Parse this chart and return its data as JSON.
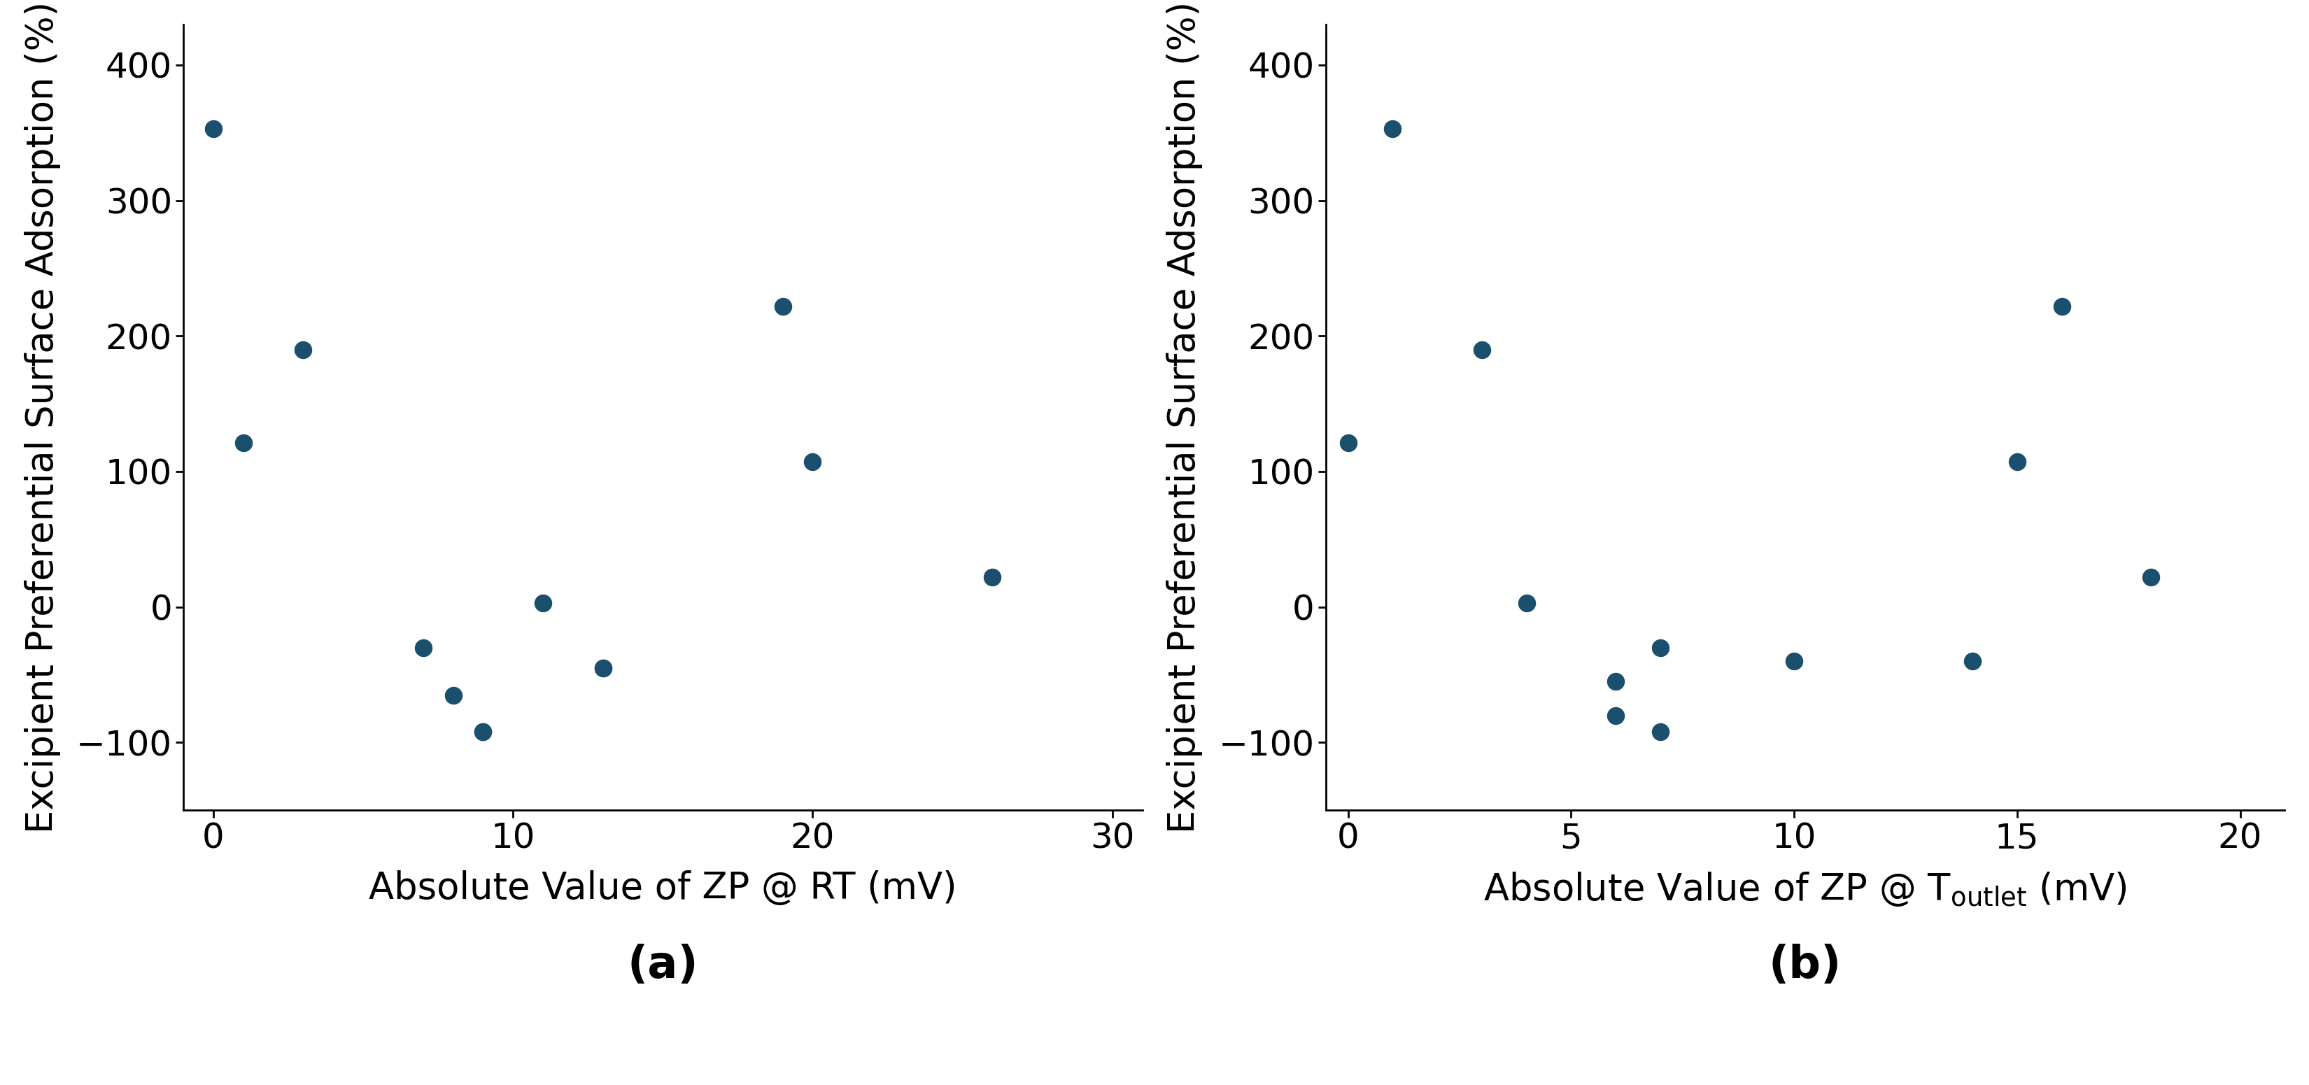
{
  "plot_a": {
    "x": [
      0,
      1,
      3,
      7,
      8,
      9,
      9,
      11,
      13,
      13,
      19,
      20,
      26
    ],
    "y": [
      353,
      121,
      190,
      -30,
      -65,
      -92,
      -92,
      3,
      -45,
      -45,
      222,
      107,
      22
    ],
    "xlabel": "Absolute Value of ZP @ RT (mV)",
    "ylabel": "Excipient Preferential Surface Adsorption (%)",
    "label": "(a)",
    "xlim": [
      -1,
      31
    ],
    "xticks": [
      0,
      10,
      20,
      30
    ],
    "ylim": [
      -150,
      430
    ],
    "yticks": [
      -100,
      0,
      100,
      200,
      300,
      400
    ]
  },
  "plot_b": {
    "x": [
      0,
      1,
      3,
      4,
      6,
      6,
      7,
      7,
      10,
      14,
      15,
      16,
      18
    ],
    "y": [
      121,
      353,
      190,
      3,
      -55,
      -80,
      -30,
      -92,
      -40,
      -40,
      107,
      222,
      22
    ],
    "ylabel": "Excipient Preferential Surface Adsorption (%)",
    "label": "(b)",
    "xlim": [
      -0.5,
      21
    ],
    "xticks": [
      0,
      5,
      10,
      15,
      20
    ],
    "ylim": [
      -150,
      430
    ],
    "yticks": [
      -100,
      0,
      100,
      200,
      300,
      400
    ]
  },
  "dot_color": "#1a4f6e",
  "dot_size": 300,
  "font_size_label": 38,
  "font_size_tick": 36,
  "font_size_sublabel": 46,
  "background_color": "#ffffff",
  "spine_linewidth": 2.0
}
